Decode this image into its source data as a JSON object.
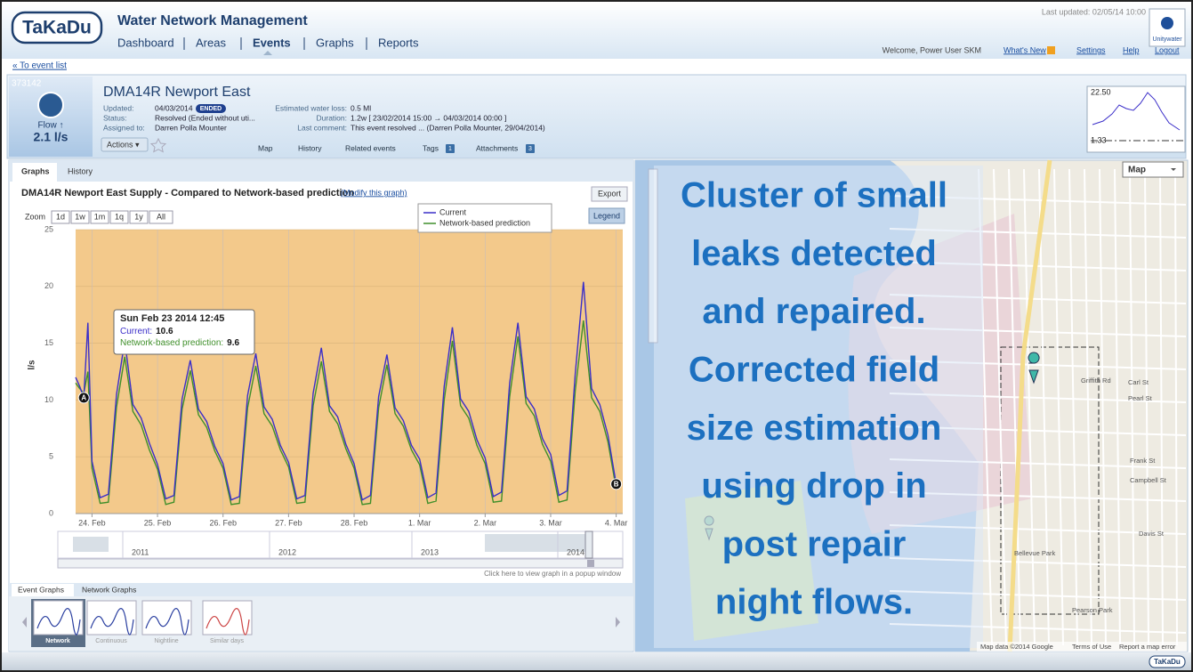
{
  "header": {
    "logo": "TaKaDu",
    "app_title": "Water Network Management",
    "nav": [
      "Dashboard",
      "Areas",
      "Events",
      "Graphs",
      "Reports"
    ],
    "last_updated": "Last updated: 02/05/14 10:00",
    "welcome": "Welcome, Power User SKM",
    "links": [
      "What's New",
      "Settings",
      "Help",
      "Logout"
    ],
    "client_logo": "Unitywater"
  },
  "back_link": "« To event list",
  "event": {
    "id": "373142",
    "metric": "Flow ↑",
    "metric_value": "2.1 l/s",
    "title": "DMA14R Newport East",
    "fields": [
      {
        "label": "Updated:",
        "value": "04/03/2014",
        "badge": "ENDED"
      },
      {
        "label": "Status:",
        "value": "Resolved (Ended without uti..."
      },
      {
        "label": "Assigned to:",
        "value": "Darren Polla Mounter"
      }
    ],
    "fields_right": [
      {
        "label": "Estimated water loss:",
        "value": "0.5 Ml"
      },
      {
        "label": "Duration:",
        "value": "1.2w [ 23/02/2014 15:00 → 04/03/2014 00:00 ]"
      },
      {
        "label": "Last comment:",
        "value": "This event resolved ... (Darren Polla Mounter, 29/04/2014)"
      }
    ],
    "actions": "Actions ▾",
    "tabs": [
      {
        "label": "Map"
      },
      {
        "label": "History"
      },
      {
        "label": "Related events"
      },
      {
        "label": "Tags",
        "count": "1"
      },
      {
        "label": "Attachments",
        "count": "3"
      }
    ],
    "sparkline": {
      "max": "22.50",
      "min": "1.33"
    }
  },
  "panel_tabs": [
    "Graphs",
    "History"
  ],
  "graph": {
    "title": "DMA14R Newport East Supply - Compared to Network-based prediction",
    "modify": "(Modify this graph)",
    "export": "Export",
    "zoom_label": "Zoom",
    "zoom": [
      "1d",
      "1w",
      "1m",
      "1q",
      "1y",
      "All"
    ],
    "legend_button": "Legend",
    "tooltip": {
      "date": "Sun Feb 23 2014 12:45",
      "current_label": "Current:",
      "current": "10.6",
      "prediction_label": "Network-based prediction:",
      "prediction": "9.6"
    },
    "markers": [
      "A",
      "#",
      "B"
    ],
    "navigator_years": [
      "2011",
      "2012",
      "2013",
      "2014"
    ],
    "popup_hint": "Click here to view graph in a popup window"
  },
  "chart_data": {
    "type": "line",
    "ylabel": "l/s",
    "xlim": [
      23.75,
      32.1
    ],
    "ylim": [
      0,
      25
    ],
    "yticks": [
      0,
      5,
      10,
      15,
      20,
      25
    ],
    "xticks": [
      {
        "value": 24,
        "label": "24. Feb"
      },
      {
        "value": 25,
        "label": "25. Feb"
      },
      {
        "value": 26,
        "label": "26. Feb"
      },
      {
        "value": 27,
        "label": "27. Feb"
      },
      {
        "value": 28,
        "label": "28. Feb"
      },
      {
        "value": 29,
        "label": "1. Mar"
      },
      {
        "value": 30,
        "label": "2. Mar"
      },
      {
        "value": 31,
        "label": "3. Mar"
      },
      {
        "value": 32,
        "label": "4. Mar"
      }
    ],
    "grid": true,
    "plot_background": "#f3c98b",
    "x": [
      23.75,
      23.8125,
      23.875,
      23.9375,
      24,
      24.125,
      24.25,
      24.375,
      24.5,
      24.625,
      24.75,
      24.875,
      25,
      25.125,
      25.25,
      25.375,
      25.5,
      25.625,
      25.75,
      25.875,
      26,
      26.125,
      26.25,
      26.375,
      26.5,
      26.625,
      26.75,
      26.875,
      27,
      27.125,
      27.25,
      27.375,
      27.5,
      27.625,
      27.75,
      27.875,
      28,
      28.125,
      28.25,
      28.375,
      28.5,
      28.625,
      28.75,
      28.875,
      29,
      29.125,
      29.25,
      29.375,
      29.5,
      29.625,
      29.75,
      29.875,
      30,
      30.125,
      30.25,
      30.375,
      30.5,
      30.625,
      30.75,
      30.875,
      31,
      31.125,
      31.25,
      31.375,
      31.5,
      31.625,
      31.75,
      31.875,
      32
    ],
    "series": [
      {
        "name": "Current",
        "color": "#3b2fc9",
        "values": [
          12.0,
          11.2,
          10.2,
          16.8,
          4.6,
          1.4,
          1.7,
          10.5,
          15.2,
          9.6,
          8.4,
          6.2,
          4.3,
          1.3,
          1.6,
          10.1,
          13.5,
          9.2,
          8.1,
          5.9,
          4.4,
          1.2,
          1.5,
          10.4,
          14.1,
          9.4,
          8.3,
          6.0,
          4.5,
          1.3,
          1.6,
          10.6,
          14.6,
          9.5,
          8.5,
          6.1,
          4.4,
          1.2,
          1.6,
          10.3,
          14.0,
          9.3,
          8.2,
          6.0,
          4.8,
          1.4,
          1.8,
          11.2,
          16.4,
          10.1,
          9.0,
          6.5,
          4.9,
          1.5,
          1.9,
          11.5,
          16.8,
          10.3,
          9.2,
          6.6,
          5.2,
          1.6,
          2.0,
          12.3,
          20.4,
          11.0,
          9.6,
          6.9,
          2.6
        ]
      },
      {
        "name": "Network-based prediction",
        "color": "#3f8f2a",
        "values": [
          11.5,
          11.0,
          10.6,
          12.5,
          4.0,
          0.9,
          1.0,
          9.4,
          13.8,
          9.0,
          7.8,
          5.6,
          3.9,
          0.8,
          1.0,
          9.2,
          12.6,
          8.7,
          7.6,
          5.5,
          4.0,
          0.8,
          0.9,
          9.3,
          13.0,
          8.8,
          7.7,
          5.6,
          4.1,
          0.9,
          1.0,
          9.5,
          13.4,
          9.0,
          7.9,
          5.7,
          4.0,
          0.8,
          0.9,
          9.3,
          13.1,
          8.8,
          7.7,
          5.6,
          4.3,
          0.9,
          1.1,
          10.0,
          15.2,
          9.5,
          8.4,
          6.0,
          4.4,
          1.0,
          1.1,
          10.3,
          15.6,
          9.7,
          8.6,
          6.1,
          4.6,
          1.0,
          1.2,
          10.8,
          17.0,
          10.2,
          9.0,
          6.3,
          2.2
        ]
      }
    ]
  },
  "graph_tabs": [
    "Event Graphs",
    "Network Graphs"
  ],
  "thumbnails": [
    "Network",
    "Continuous",
    "Nightline",
    "Similar days"
  ],
  "map": {
    "type_select": "Map",
    "overlay_text": [
      "Cluster of small",
      "leaks detected",
      "and repaired.",
      "Corrected field",
      "size estimation",
      "using drop in",
      "post repair",
      "night flows."
    ],
    "attribution": "Map data ©2014 Google",
    "terms": "Terms of Use",
    "report": "Report a map error",
    "streets": [
      "Griffith Rd",
      "Carl St",
      "Pearl St",
      "Frank St",
      "Campbell St",
      "Bellevue Park",
      "Pearson Park",
      "Davis St"
    ]
  },
  "footer_logo": "TaKaDu"
}
